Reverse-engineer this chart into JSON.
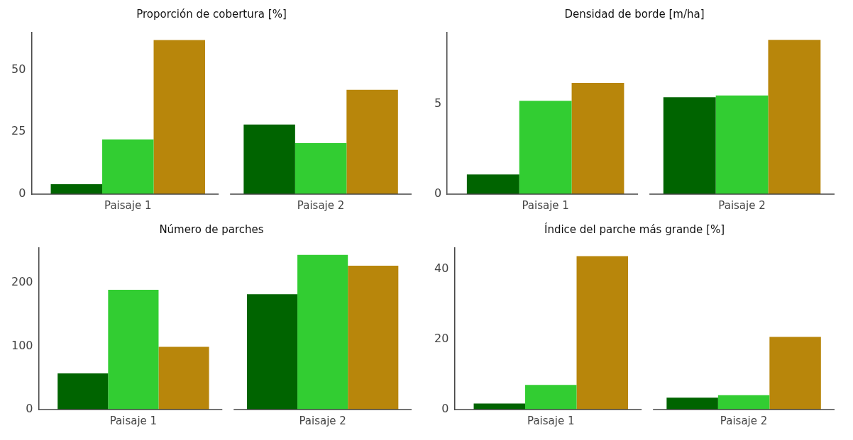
{
  "chart_data": [
    {
      "type": "bar",
      "title": "Proporción de cobertura [%]",
      "categories": [
        "Paisaje 1",
        "Paisaje 2"
      ],
      "series": [
        {
          "color": "#006400",
          "values": [
            4,
            28
          ]
        },
        {
          "color": "#32cd32",
          "values": [
            22,
            20.5
          ]
        },
        {
          "color": "#b8860b",
          "values": [
            62,
            42
          ]
        }
      ],
      "ylim": [
        0,
        65
      ],
      "yticks": [
        0,
        25,
        50
      ],
      "grid": false,
      "legend": false
    },
    {
      "type": "bar",
      "title": "Densidad de borde [m/ha]",
      "categories": [
        "Paisaje 1",
        "Paisaje 2"
      ],
      "series": [
        {
          "color": "#006400",
          "values": [
            1.1,
            5.4
          ]
        },
        {
          "color": "#32cd32",
          "values": [
            5.2,
            5.5
          ]
        },
        {
          "color": "#b8860b",
          "values": [
            6.2,
            8.6
          ]
        }
      ],
      "ylim": [
        0,
        9
      ],
      "yticks": [
        0,
        5
      ],
      "grid": false,
      "legend": false
    },
    {
      "type": "bar",
      "title": "Número de parches",
      "categories": [
        "Paisaje 1",
        "Paisaje 2"
      ],
      "series": [
        {
          "color": "#006400",
          "values": [
            57,
            182
          ]
        },
        {
          "color": "#32cd32",
          "values": [
            189,
            244
          ]
        },
        {
          "color": "#b8860b",
          "values": [
            99,
            227
          ]
        }
      ],
      "ylim": [
        0,
        255
      ],
      "yticks": [
        0,
        100,
        200
      ],
      "grid": false,
      "legend": false
    },
    {
      "type": "bar",
      "title": "Índice del parche más grande [%]",
      "categories": [
        "Paisaje 1",
        "Paisaje 2"
      ],
      "series": [
        {
          "color": "#006400",
          "values": [
            1.7,
            3.4
          ]
        },
        {
          "color": "#32cd32",
          "values": [
            7,
            4.1
          ]
        },
        {
          "color": "#b8860b",
          "values": [
            43.7,
            20.7
          ]
        }
      ],
      "ylim": [
        0,
        46
      ],
      "yticks": [
        0,
        20,
        40
      ],
      "grid": false,
      "legend": false
    }
  ]
}
